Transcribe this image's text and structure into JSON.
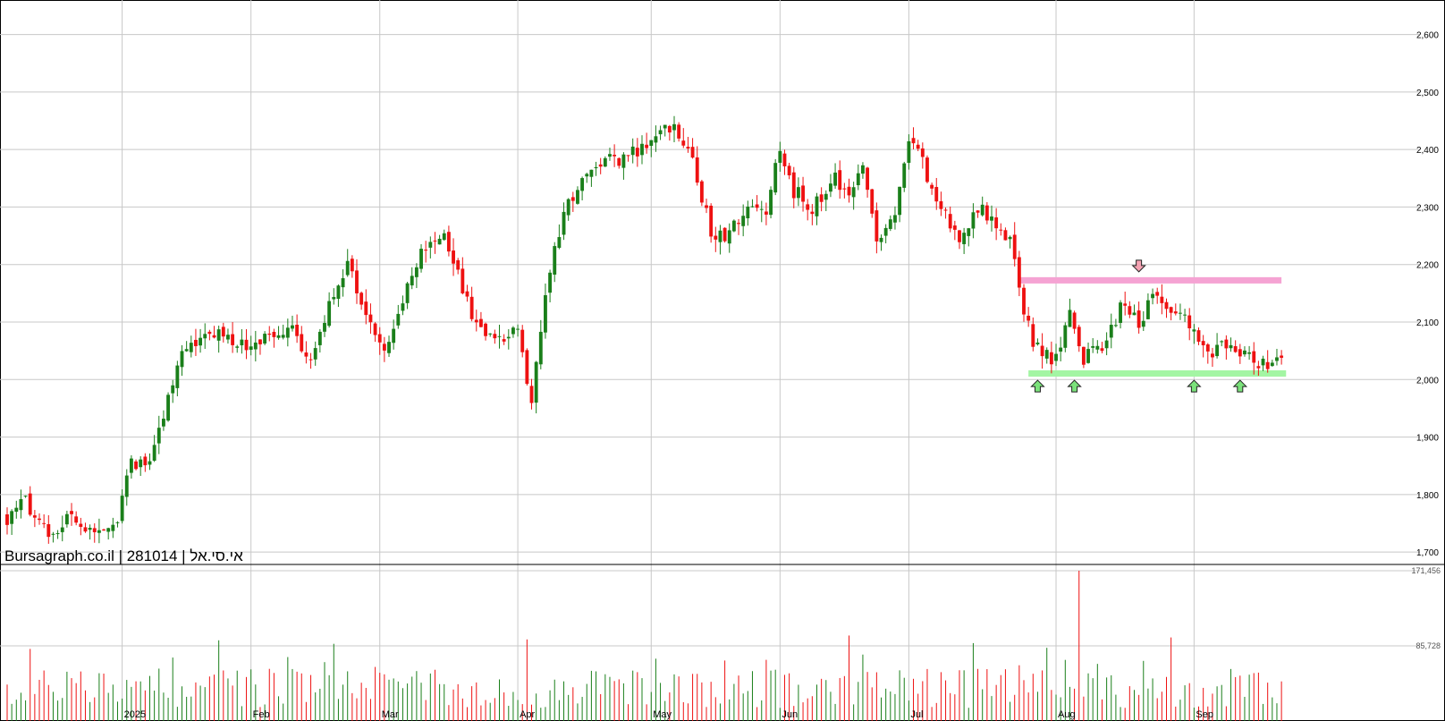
{
  "caption": "Bursagraph.co.il | 281014 | אי.סי.אל",
  "colors": {
    "up": "#1a7f1a",
    "down": "#ee1111",
    "grid": "#c8c8c8",
    "resistance_band": "#f5a3d3",
    "support_band": "#a3f5a3",
    "up_arrow": "#7be27b",
    "down_arrow": "#f5a3b3"
  },
  "chart_data": {
    "type": "candlestick",
    "ylim": [
      1680,
      2660
    ],
    "y_ticks": [
      "1,700",
      "1,800",
      "1,900",
      "2,000",
      "2,100",
      "2,200",
      "2,300",
      "2,400",
      "2,500",
      "2,600"
    ],
    "y_tick_values": [
      1700,
      1800,
      1900,
      2000,
      2100,
      2200,
      2300,
      2400,
      2500,
      2600
    ],
    "x_ticks": [
      {
        "label": "2025",
        "day": 25
      },
      {
        "label": "Feb",
        "day": 53
      },
      {
        "label": "Mar",
        "day": 81
      },
      {
        "label": "Apr",
        "day": 111
      },
      {
        "label": "May",
        "day": 140
      },
      {
        "label": "Jun",
        "day": 168
      },
      {
        "label": "Jul",
        "day": 196
      },
      {
        "label": "Aug",
        "day": 228
      },
      {
        "label": "Sep",
        "day": 258
      }
    ],
    "days_total": 290,
    "anchors": [
      [
        0,
        1760
      ],
      [
        4,
        1785
      ],
      [
        9,
        1740
      ],
      [
        14,
        1755
      ],
      [
        19,
        1740
      ],
      [
        24,
        1760
      ],
      [
        27,
        1850
      ],
      [
        32,
        1875
      ],
      [
        36,
        2000
      ],
      [
        40,
        2070
      ],
      [
        47,
        2080
      ],
      [
        53,
        2060
      ],
      [
        57,
        2070
      ],
      [
        61,
        2100
      ],
      [
        66,
        2030
      ],
      [
        70,
        2130
      ],
      [
        74,
        2200
      ],
      [
        79,
        2100
      ],
      [
        82,
        2040
      ],
      [
        86,
        2130
      ],
      [
        90,
        2230
      ],
      [
        95,
        2250
      ],
      [
        99,
        2160
      ],
      [
        103,
        2080
      ],
      [
        107,
        2070
      ],
      [
        111,
        2100
      ],
      [
        114,
        1960
      ],
      [
        117,
        2150
      ],
      [
        121,
        2290
      ],
      [
        125,
        2340
      ],
      [
        130,
        2390
      ],
      [
        134,
        2380
      ],
      [
        137,
        2400
      ],
      [
        142,
        2440
      ],
      [
        146,
        2430
      ],
      [
        149,
        2380
      ],
      [
        153,
        2260
      ],
      [
        157,
        2250
      ],
      [
        161,
        2300
      ],
      [
        165,
        2290
      ],
      [
        168,
        2400
      ],
      [
        171,
        2330
      ],
      [
        175,
        2290
      ],
      [
        179,
        2350
      ],
      [
        183,
        2330
      ],
      [
        186,
        2360
      ],
      [
        189,
        2240
      ],
      [
        193,
        2290
      ],
      [
        196,
        2420
      ],
      [
        199,
        2380
      ],
      [
        203,
        2290
      ],
      [
        207,
        2250
      ],
      [
        211,
        2300
      ],
      [
        215,
        2260
      ],
      [
        218,
        2240
      ],
      [
        221,
        2110
      ],
      [
        224,
        2050
      ],
      [
        228,
        2030
      ],
      [
        231,
        2120
      ],
      [
        234,
        2040
      ],
      [
        238,
        2060
      ],
      [
        242,
        2120
      ],
      [
        246,
        2100
      ],
      [
        250,
        2150
      ],
      [
        253,
        2130
      ],
      [
        256,
        2110
      ],
      [
        259,
        2060
      ],
      [
        262,
        2040
      ],
      [
        266,
        2070
      ],
      [
        270,
        2040
      ],
      [
        274,
        2020
      ],
      [
        277,
        2050
      ]
    ],
    "volume_max": 171456,
    "volume_ticks": [
      "85,728",
      "171,456"
    ],
    "volume_tick_values": [
      85728,
      171456
    ],
    "resistance_band": {
      "low": 2167,
      "high": 2178,
      "from_day": 220,
      "to_day": 277
    },
    "support_band": {
      "low": 2005,
      "high": 2016,
      "from_day": 222,
      "to_day": 278
    },
    "buy_signal_days": [
      224,
      232,
      258,
      268
    ],
    "sell_signal_days": [
      246
    ]
  }
}
